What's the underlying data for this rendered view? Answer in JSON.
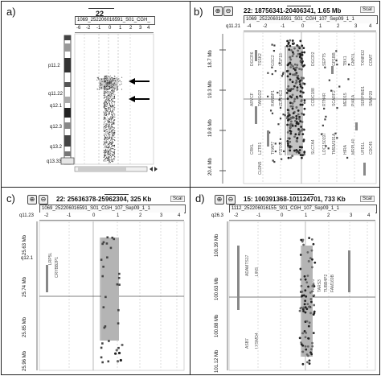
{
  "panels": {
    "a": {
      "label": "a)",
      "title": "22",
      "sample": "1069_252206016591_S01_CGH_",
      "ruler": [
        "-6",
        "-2",
        "-1",
        "0",
        "1",
        "2",
        "3",
        "4"
      ],
      "bands": [
        "p11.2",
        "q11.22",
        "q12.1",
        "q12.3",
        "q13.2",
        "q13.33"
      ]
    },
    "b": {
      "label": "b)",
      "title": "22: 18756341-20406341, 1.65 Mb",
      "sample": "1069_252206016591_S01_CGH_107_Sep09_1_1",
      "scale_label": "Scal",
      "band": "q11.21",
      "ruler": [
        "-4",
        "-2",
        "-1",
        "0",
        "1",
        "2",
        "3",
        "4"
      ],
      "positions": [
        "18.7 Mb",
        "19.3 Mb",
        "19.8 Mb",
        "20.4 Mb"
      ],
      "genes": [
        "DGCR6",
        "TSSK2",
        "GSC2",
        "USP18",
        "DGCR2",
        "SEPT5",
        "GP1BB",
        "TBX1",
        "GNB1L",
        "TXNRD2",
        "COMT",
        "ARVCF",
        "TANGO2",
        "RANBP1",
        "ZDHHC8",
        "CCDC188",
        "RTN4R",
        "SCARF2",
        "MED15",
        "PI4KA",
        "SERPIND1",
        "SNAP29",
        "CRKL",
        "LZTR1",
        "THAP7",
        "P2RX6",
        "SLC7A4",
        "LOC150197",
        "TMEM191A",
        "HIRA",
        "MRPL40",
        "UFD1L",
        "CDC45",
        "CLDN5"
      ]
    },
    "c": {
      "label": "c)",
      "title": "22: 25636378-25962304, 325 Kb",
      "sample": "1069_252206016591_S01_CGH_107_Sep09_1_1",
      "scale_label": "Scal",
      "band": "q11.23",
      "band2": "q12.1",
      "ruler": [
        "-2",
        "-1",
        "0",
        "1",
        "2",
        "3",
        "4"
      ],
      "positions": [
        "25.63 Mb",
        "25.74 Mb",
        "25.85 Mb",
        "25.96 Mb"
      ],
      "genes": [
        "LRP5L",
        "CRYBB2P1"
      ]
    },
    "d": {
      "label": "d)",
      "title": "15: 100391368-101124701, 733 Kb",
      "sample": "1112_252206016155_S01_CGH_107_Sep09_1_1",
      "scale_label": "Scal",
      "band": "q26.3",
      "ruler": [
        "-2",
        "-1",
        "0",
        "1",
        "2",
        "3",
        "4"
      ],
      "positions": [
        "100.39 Mb",
        "100.63 Mb",
        "100.88 Mb",
        "101.12 Mb"
      ],
      "genes": [
        "ADAMTS17",
        "LINS",
        "ASB7",
        "LYSMD4",
        "TM2D3",
        "TARS3",
        "TUBB4P2",
        "FAM169B"
      ]
    }
  },
  "icons": {
    "zoom_in": "magnifier-plus-icon",
    "zoom_out": "magnifier-minus-icon"
  }
}
